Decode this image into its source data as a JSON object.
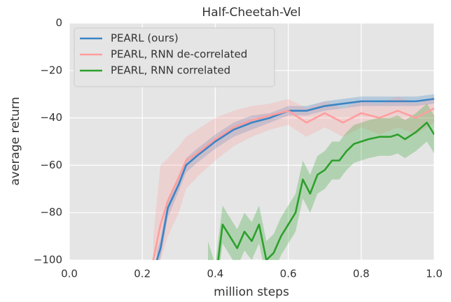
{
  "chart_data": {
    "type": "line",
    "title": "Half-Cheetah-Vel",
    "x_label": "million steps",
    "y_label": "average return",
    "xlim": [
      0,
      1
    ],
    "ylim": [
      -100,
      0
    ],
    "xticks": [
      {
        "value": 0,
        "label": "0.0"
      },
      0.2,
      0.4,
      0.6,
      0.8,
      {
        "value": 1,
        "label": "1.0"
      }
    ],
    "yticks": [
      {
        "value": -100,
        "label": "−100"
      },
      {
        "value": -80,
        "label": "−80"
      },
      {
        "value": -60,
        "label": "−60"
      },
      {
        "value": -40,
        "label": "−40"
      },
      {
        "value": -20,
        "label": "−20"
      },
      0
    ],
    "grid": true,
    "legend": "upper left",
    "series": [
      {
        "name": "PEARL (ours)",
        "color": "#3b84c4",
        "x": [
          0.24,
          0.25,
          0.27,
          0.3,
          0.32,
          0.35,
          0.4,
          0.45,
          0.5,
          0.55,
          0.6,
          0.65,
          0.7,
          0.75,
          0.8,
          0.85,
          0.9,
          0.95,
          1.0
        ],
        "values": [
          -100,
          -95,
          -78,
          -68,
          -60,
          -56,
          -50,
          -45,
          -42,
          -40,
          -37,
          -37,
          -35,
          -34,
          -33,
          -33,
          -33,
          -33,
          -32
        ],
        "lower": [
          -104,
          -99,
          -82,
          -71,
          -63,
          -59,
          -53,
          -48,
          -45,
          -42,
          -39,
          -39,
          -37,
          -36,
          -35,
          -35,
          -35,
          -35,
          -34
        ],
        "upper": [
          -96,
          -91,
          -74,
          -65,
          -57,
          -53,
          -47,
          -42,
          -39,
          -38,
          -35,
          -35,
          -33,
          -32,
          -31,
          -31,
          -31,
          -31,
          -30
        ]
      },
      {
        "name": "PEARL, RNN de-correlated",
        "color": "#ff9e9e",
        "x": [
          0.23,
          0.25,
          0.27,
          0.3,
          0.32,
          0.35,
          0.4,
          0.45,
          0.5,
          0.55,
          0.6,
          0.65,
          0.7,
          0.75,
          0.8,
          0.85,
          0.9,
          0.95,
          1.0
        ],
        "values": [
          -100,
          -85,
          -75,
          -65,
          -58,
          -55,
          -49,
          -44,
          -41,
          -39,
          -37,
          -42,
          -38,
          -42,
          -38,
          -40,
          -37,
          -40,
          -36
        ],
        "lower": [
          -110,
          -100,
          -90,
          -80,
          -70,
          -65,
          -58,
          -52,
          -48,
          -45,
          -43,
          -48,
          -44,
          -48,
          -44,
          -47,
          -44,
          -47,
          -42
        ],
        "upper": [
          -90,
          -60,
          -57,
          -52,
          -48,
          -45,
          -40,
          -37,
          -35,
          -34,
          -32,
          -36,
          -33,
          -36,
          -33,
          -34,
          -31,
          -34,
          -31
        ]
      },
      {
        "name": "PEARL, RNN correlated",
        "color": "#2ca02c",
        "x": [
          0.38,
          0.4,
          0.42,
          0.44,
          0.46,
          0.48,
          0.5,
          0.52,
          0.54,
          0.56,
          0.58,
          0.6,
          0.62,
          0.64,
          0.66,
          0.68,
          0.7,
          0.72,
          0.74,
          0.76,
          0.78,
          0.8,
          0.82,
          0.85,
          0.88,
          0.9,
          0.92,
          0.95,
          0.98,
          1.0
        ],
        "values": [
          -100,
          -110,
          -85,
          -90,
          -95,
          -88,
          -92,
          -85,
          -100,
          -97,
          -90,
          -85,
          -80,
          -66,
          -72,
          -64,
          -62,
          -58,
          -58,
          -54,
          -51,
          -50,
          -49,
          -48,
          -48,
          -47,
          -49,
          -46,
          -42,
          -47
        ],
        "lower": [
          -108,
          -118,
          -93,
          -98,
          -103,
          -96,
          -100,
          -93,
          -108,
          -105,
          -98,
          -93,
          -88,
          -74,
          -80,
          -72,
          -70,
          -66,
          -66,
          -62,
          -59,
          -58,
          -57,
          -56,
          -56,
          -55,
          -57,
          -54,
          -50,
          -55
        ],
        "upper": [
          -92,
          -102,
          -77,
          -82,
          -87,
          -80,
          -84,
          -77,
          -92,
          -89,
          -82,
          -77,
          -72,
          -58,
          -64,
          -56,
          -54,
          -50,
          -50,
          -46,
          -43,
          -42,
          -41,
          -40,
          -40,
          -39,
          -41,
          -38,
          -34,
          -39
        ]
      }
    ]
  }
}
